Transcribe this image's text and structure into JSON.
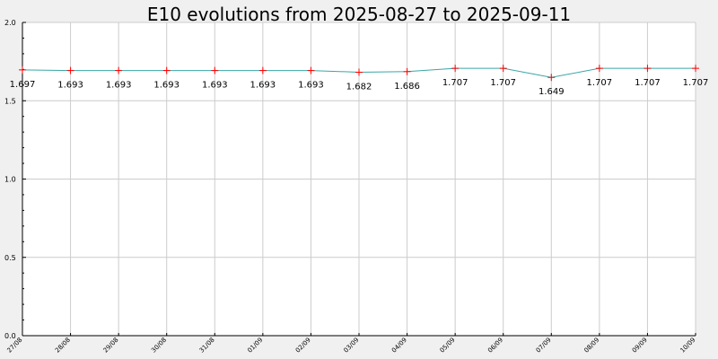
{
  "chart_data": {
    "type": "line",
    "title": "E10 evolutions from 2025-08-27 to 2025-09-11",
    "xlabel": "",
    "ylabel": "",
    "categories": [
      "27/08",
      "28/08",
      "29/08",
      "30/08",
      "31/08",
      "01/09",
      "02/09",
      "03/09",
      "04/09",
      "05/09",
      "06/09",
      "07/09",
      "08/09",
      "09/09",
      "10/09"
    ],
    "series": [
      {
        "values": [
          1.697,
          1.693,
          1.693,
          1.693,
          1.693,
          1.693,
          1.693,
          1.682,
          1.686,
          1.707,
          1.707,
          1.649,
          1.707,
          1.707,
          1.707
        ],
        "labels": [
          "1.697",
          "1.693",
          "1.693",
          "1.693",
          "1.693",
          "1.693",
          "1.693",
          "1.682",
          "1.686",
          "1.707",
          "1.707",
          "1.649",
          "1.707",
          "1.707",
          "1.707"
        ]
      }
    ],
    "ylim": [
      0,
      2
    ],
    "yticks": [
      "0.0",
      "0.5",
      "1.0",
      "1.5",
      "2.0"
    ],
    "grid": true,
    "colors": {
      "background": "#f0f0f0",
      "plot_background": "#ffffff",
      "line": "#3aa6a6",
      "marker": "#ff0000",
      "grid": "#cccccc",
      "axis": "#000000"
    }
  }
}
